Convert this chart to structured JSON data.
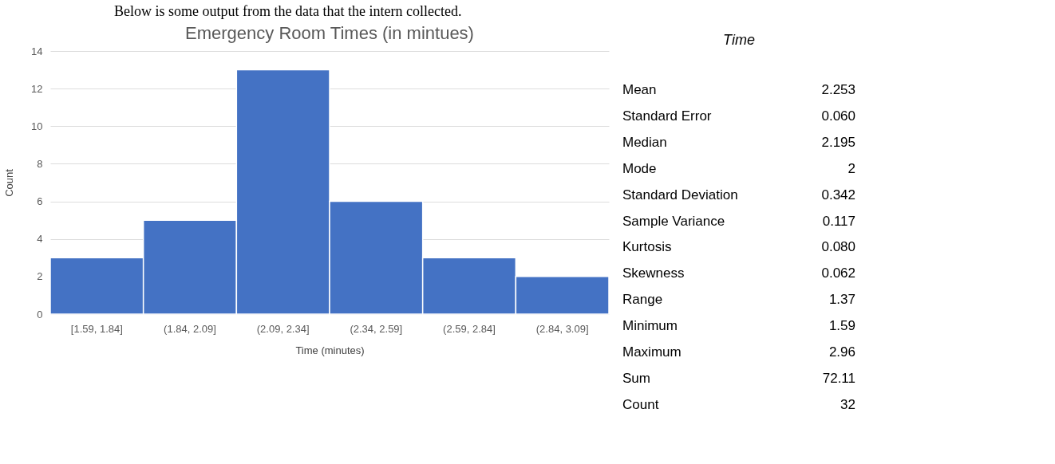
{
  "chart_data": [
    {
      "type": "bar",
      "title": "Emergency Room Times (in mintues)",
      "xlabel": "Time (minutes)",
      "ylabel": "Count",
      "categories": [
        "[1.59, 1.84]",
        "(1.84, 2.09]",
        "(2.09, 2.34]",
        "(2.34, 2.59]",
        "(2.59, 2.84]",
        "(2.84, 3.09]"
      ],
      "values": [
        3,
        5,
        13,
        6,
        3,
        2
      ],
      "color": "#4472c4",
      "ylim": [
        0,
        14
      ],
      "yticks": [
        0,
        2,
        4,
        6,
        8,
        10,
        12,
        14
      ],
      "grid": "y",
      "annotations": [
        "Below is some output from the data that the intern collected."
      ]
    },
    {
      "type": "other",
      "title": "Time",
      "annotations": [
        "Mean",
        "2.253",
        "Standard Error",
        "0.060",
        "Median",
        "2.195",
        "Mode",
        "2",
        "Standard Deviation",
        "0.342",
        "Sample Variance",
        "0.117",
        "Kurtosis",
        "0.080",
        "Skewness",
        "0.062",
        "Range",
        "1.37",
        "Minimum",
        "1.59",
        "Maximum",
        "2.96",
        "Sum",
        "72.11",
        "Count",
        "32"
      ]
    }
  ]
}
